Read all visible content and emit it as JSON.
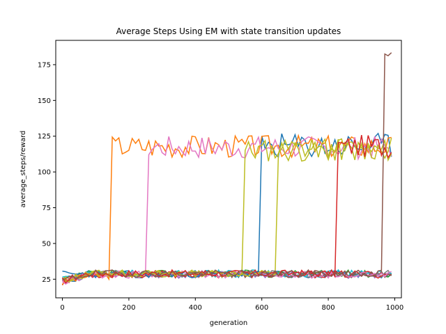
{
  "chart_data": {
    "type": "line",
    "title": "Average Steps Using EM with state transition updates",
    "xlabel": "generation",
    "ylabel": "average_steps/reward",
    "xlim": [
      -20,
      1020
    ],
    "ylim": [
      12,
      192
    ],
    "xticks": [
      0,
      200,
      400,
      600,
      800,
      1000
    ],
    "yticks": [
      25,
      50,
      75,
      100,
      125,
      150,
      175
    ],
    "grid": false,
    "legend": "none",
    "sample_step": 10,
    "jump_series": [
      {
        "color": "#ff7f0e",
        "jump_at": 150,
        "low": 27.5,
        "high": 118,
        "seed": 3
      },
      {
        "color": "#e377c2",
        "jump_at": 260,
        "low": 28,
        "high": 117,
        "seed": 7
      },
      {
        "color": "#bcbd22",
        "jump_at": 550,
        "low": 29,
        "high": 115,
        "seed": 11
      },
      {
        "color": "#bcbd22",
        "jump_at": 650,
        "low": 29,
        "high": 116,
        "seed": 13
      },
      {
        "color": "#d62728",
        "jump_at": 830,
        "low": 29,
        "high": 118,
        "seed": 17
      },
      {
        "color": "#8c564b",
        "jump_at": 970,
        "low": 29,
        "high": 182,
        "seed": 19
      }
    ],
    "blue_high_series": {
      "color": "#1f77b4",
      "from": 600,
      "high": 118,
      "low": 28.5,
      "seed": 23
    },
    "flat_series": [
      {
        "color": "#1f77b4",
        "mean": 28.5,
        "seed": 31
      },
      {
        "color": "#2ca02c",
        "mean": 28.8,
        "seed": 37
      },
      {
        "color": "#9467bd",
        "mean": 28.2,
        "seed": 41
      },
      {
        "color": "#7f7f7f",
        "mean": 28.6,
        "seed": 43
      },
      {
        "color": "#17becf",
        "mean": 29.0,
        "seed": 47
      },
      {
        "color": "#d62728",
        "mean": 28.4,
        "seed": 53
      },
      {
        "color": "#8c564b",
        "mean": 28.7,
        "seed": 59
      },
      {
        "color": "#e377c2",
        "mean": 28.3,
        "seed": 61
      }
    ]
  }
}
